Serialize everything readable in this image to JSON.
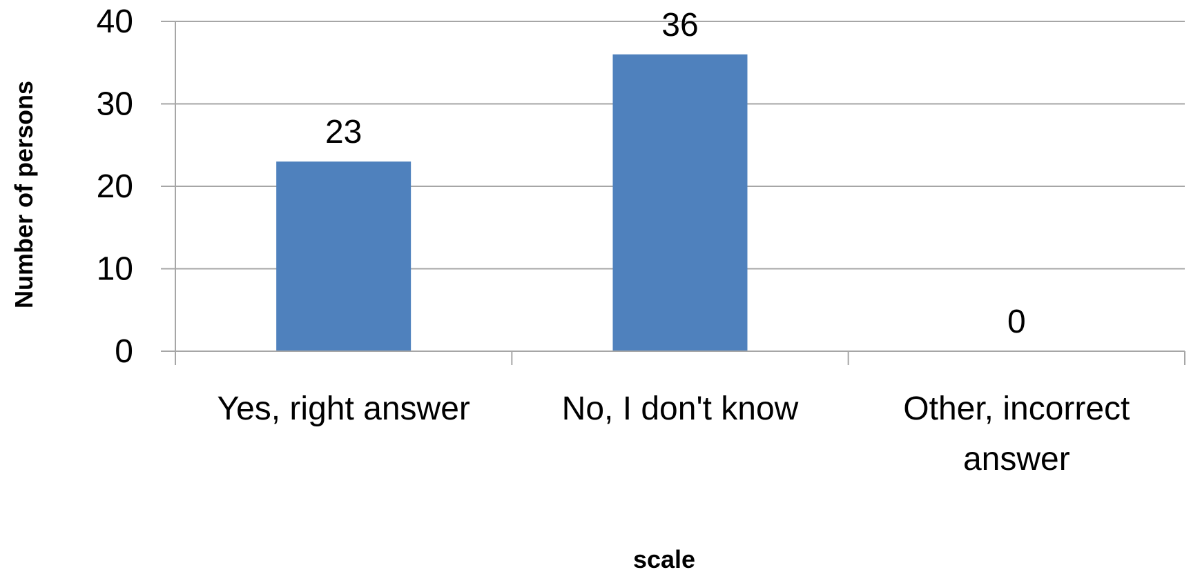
{
  "chart_data": {
    "type": "bar",
    "categories": [
      [
        "Yes, right answer"
      ],
      [
        "No, I don't know"
      ],
      [
        "Other, incorrect",
        "answer"
      ]
    ],
    "series": [
      {
        "values": [
          23,
          36,
          0
        ]
      }
    ],
    "data_labels": [
      "23",
      "36",
      "0"
    ],
    "xlabel": "scale",
    "ylabel": "Number of persons",
    "ylim": [
      0,
      40
    ],
    "yticks": [
      0,
      10,
      20,
      30,
      40
    ],
    "ytick_labels": [
      "0",
      "10",
      "20",
      "30",
      "40"
    ],
    "grid": true,
    "legend": "none",
    "bar_color": "#4F81BD",
    "grid_color": "#A6A6A6"
  }
}
